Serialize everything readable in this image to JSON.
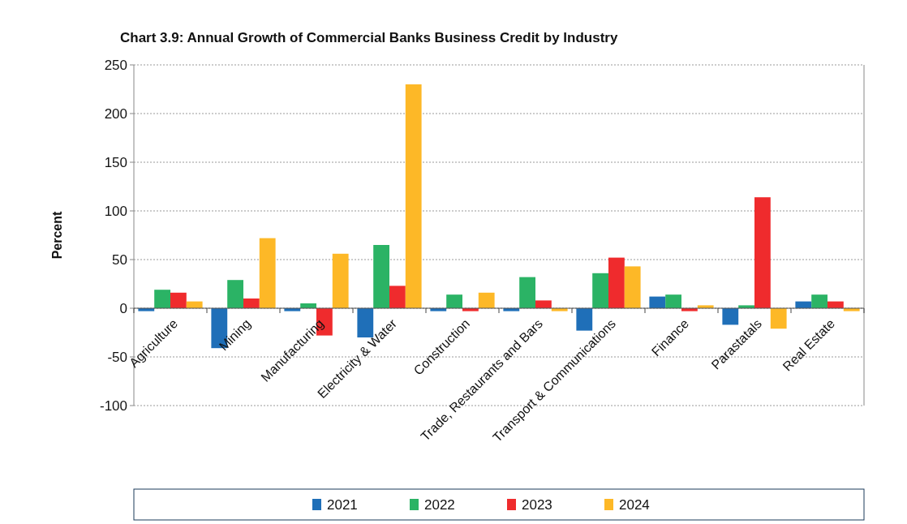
{
  "chart_data": {
    "type": "bar",
    "title": "Chart 3.9: Annual Growth of Commercial Banks Business Credit by Industry",
    "ylabel": "Percent",
    "categories": [
      "Agriculture",
      "Mining",
      "Manufacturing",
      "Electricity & Water",
      "Construction",
      "Trade, Restaurants and Bars",
      "Transport & Communications",
      "Finance",
      "Parastatals",
      "Real Estate"
    ],
    "series": [
      {
        "name": "2021",
        "color": "#1f6fb8",
        "values": [
          -3,
          -41,
          -3,
          -30,
          -3,
          -3,
          -23,
          12,
          -17,
          7
        ]
      },
      {
        "name": "2022",
        "color": "#2bb365",
        "values": [
          19,
          29,
          5,
          65,
          14,
          32,
          36,
          14,
          3,
          14
        ]
      },
      {
        "name": "2023",
        "color": "#ef2b2d",
        "values": [
          16,
          10,
          -28,
          23,
          -3,
          8,
          52,
          -3,
          114,
          7
        ]
      },
      {
        "name": "2024",
        "color": "#fdb827",
        "values": [
          7,
          72,
          56,
          230,
          16,
          -3,
          43,
          3,
          -21,
          -3
        ]
      }
    ],
    "ylim": [
      -100,
      250
    ],
    "yticks": [
      -100,
      -50,
      0,
      50,
      100,
      150,
      200,
      250
    ],
    "grid": "y",
    "legend": "bottom"
  }
}
